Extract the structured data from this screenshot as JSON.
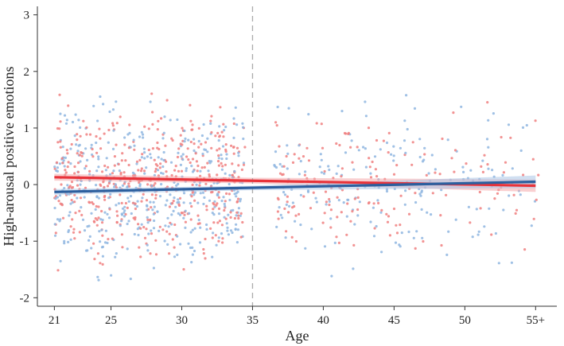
{
  "chart_data": {
    "type": "scatter",
    "title": "",
    "xlabel": "Age",
    "ylabel": "High-arousal positive emotions",
    "x_ticks": [
      {
        "value": 21,
        "label": "21"
      },
      {
        "value": 25,
        "label": "25"
      },
      {
        "value": 30,
        "label": "30"
      },
      {
        "value": 35,
        "label": "35"
      },
      {
        "value": 40,
        "label": "40"
      },
      {
        "value": 45,
        "label": "45"
      },
      {
        "value": 50,
        "label": "50"
      },
      {
        "value": 55,
        "label": "55+"
      }
    ],
    "y_ticks": [
      {
        "value": -2,
        "label": "-2"
      },
      {
        "value": -1,
        "label": "-1"
      },
      {
        "value": 0,
        "label": "0"
      },
      {
        "value": 1,
        "label": "1"
      },
      {
        "value": 2,
        "label": "2"
      },
      {
        "value": 3,
        "label": "3"
      }
    ],
    "xlim": [
      19.8,
      56.5
    ],
    "ylim": [
      -2.15,
      3.15
    ],
    "grid": false,
    "legend": "none",
    "reference_line": {
      "x": 35,
      "style": "dashed",
      "color": "#aaaaaa"
    },
    "series": [
      {
        "color": "#e8333a",
        "point_color": "#f08080",
        "band_color": "#f4a7aa",
        "trend": [
          {
            "x": 21,
            "y": 0.13
          },
          {
            "x": 55,
            "y": -0.02
          }
        ],
        "ci_low": [
          {
            "x": 21,
            "y": 0.07
          },
          {
            "x": 35,
            "y": 0.02
          },
          {
            "x": 55,
            "y": -0.13
          }
        ],
        "ci_high": [
          {
            "x": 21,
            "y": 0.19
          },
          {
            "x": 35,
            "y": 0.12
          },
          {
            "x": 55,
            "y": 0.09
          }
        ]
      },
      {
        "color": "#2c5f9e",
        "point_color": "#8fb6e0",
        "band_color": "#a9c4e6",
        "trend": [
          {
            "x": 21,
            "y": -0.13
          },
          {
            "x": 55,
            "y": 0.05
          }
        ],
        "ci_low": [
          {
            "x": 21,
            "y": -0.18
          },
          {
            "x": 35,
            "y": -0.1
          },
          {
            "x": 55,
            "y": -0.06
          }
        ],
        "ci_high": [
          {
            "x": 21,
            "y": -0.08
          },
          {
            "x": 35,
            "y": -0.02
          },
          {
            "x": 55,
            "y": 0.16
          }
        ]
      }
    ]
  }
}
